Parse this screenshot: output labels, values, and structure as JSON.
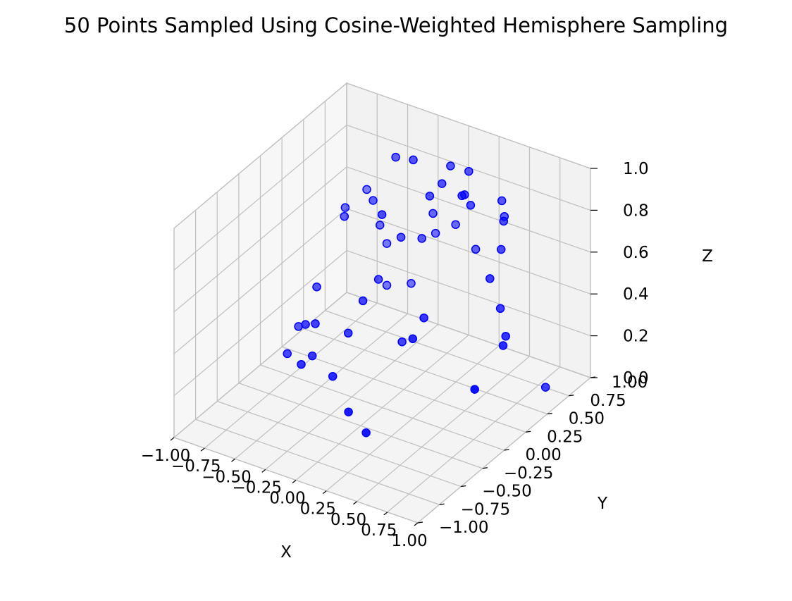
{
  "chart_data": {
    "type": "scatter",
    "title": "50 Points Sampled Using Cosine-Weighted Hemisphere Sampling",
    "xlabel": "X",
    "ylabel": "Y",
    "zlabel": "Z",
    "xlim": [
      -1.0,
      1.0
    ],
    "ylim": [
      -1.0,
      1.0
    ],
    "zlim": [
      0.0,
      1.0
    ],
    "xticks": [
      "−1.00",
      "−0.75",
      "−0.50",
      "−0.25",
      "0.00",
      "0.25",
      "0.50",
      "0.75",
      "1.00"
    ],
    "yticks": [
      "−1.00",
      "−0.75",
      "−0.50",
      "−0.25",
      "0.00",
      "0.25",
      "0.50",
      "0.75",
      "1.00"
    ],
    "zticks": [
      "0.0",
      "0.2",
      "0.4",
      "0.6",
      "0.8",
      "1.0"
    ],
    "grid": true,
    "projection": "3d",
    "marker_color": "#0000ff",
    "points": [
      {
        "x": -0.05,
        "y": -0.32,
        "z": 0.08
      },
      {
        "x": 0.08,
        "y": -0.3,
        "z": 0.0
      },
      {
        "x": -0.7,
        "y": 0.1,
        "z": 0.22
      },
      {
        "x": -0.58,
        "y": -0.12,
        "z": 0.13
      },
      {
        "x": -0.3,
        "y": -0.15,
        "z": 0.14
      },
      {
        "x": -0.56,
        "y": -0.02,
        "z": 0.14
      },
      {
        "x": -0.35,
        "y": 0.1,
        "z": 0.25
      },
      {
        "x": -0.3,
        "y": 0.2,
        "z": 0.38
      },
      {
        "x": -0.75,
        "y": 0.3,
        "z": 0.32
      },
      {
        "x": -0.62,
        "y": 0.1,
        "z": 0.24
      },
      {
        "x": -0.3,
        "y": 0.38,
        "z": 0.42
      },
      {
        "x": -0.05,
        "y": 0.3,
        "z": 0.2
      },
      {
        "x": 0.2,
        "y": 0.2,
        "z": 0.4
      },
      {
        "x": 0.25,
        "y": 0.0,
        "z": 0.38
      },
      {
        "x": 0.9,
        "y": -0.2,
        "z": 0.34
      },
      {
        "x": 0.6,
        "y": 0.4,
        "z": 0.6
      },
      {
        "x": 0.3,
        "y": 0.6,
        "z": 0.82
      },
      {
        "x": -0.55,
        "y": 0.75,
        "z": 0.5
      },
      {
        "x": -0.8,
        "y": 0.7,
        "z": 0.55
      },
      {
        "x": -0.7,
        "y": 0.55,
        "z": 0.58
      },
      {
        "x": -0.5,
        "y": 0.6,
        "z": 0.68
      },
      {
        "x": -0.15,
        "y": 0.8,
        "z": 0.62
      },
      {
        "x": -0.1,
        "y": 0.6,
        "z": 0.58
      },
      {
        "x": -0.2,
        "y": 0.5,
        "z": 0.6
      },
      {
        "x": -0.25,
        "y": 0.35,
        "z": 0.75
      },
      {
        "x": 0.0,
        "y": 0.55,
        "z": 0.82
      },
      {
        "x": 0.1,
        "y": 0.55,
        "z": 0.9
      },
      {
        "x": 0.25,
        "y": 0.6,
        "z": 0.86
      },
      {
        "x": 0.3,
        "y": 0.5,
        "z": 0.9
      },
      {
        "x": 0.55,
        "y": 0.6,
        "z": 0.66
      },
      {
        "x": 0.65,
        "y": 0.45,
        "z": 0.45
      },
      {
        "x": 0.8,
        "y": 0.3,
        "z": 0.4
      },
      {
        "x": 0.85,
        "y": 0.2,
        "z": 0.4
      },
      {
        "x": 0.5,
        "y": 0.7,
        "z": 0.75
      },
      {
        "x": 0.45,
        "y": 0.75,
        "z": 0.82
      },
      {
        "x": -0.35,
        "y": 0.65,
        "z": 0.9
      },
      {
        "x": -0.1,
        "y": 0.5,
        "z": 0.99
      },
      {
        "x": 0.1,
        "y": 0.65,
        "z": 0.95
      },
      {
        "x": 0.2,
        "y": 0.72,
        "z": 0.92
      },
      {
        "x": 0.4,
        "y": 0.85,
        "z": 0.7
      },
      {
        "x": 0.0,
        "y": 0.85,
        "z": 0.58
      },
      {
        "x": -0.2,
        "y": 0.9,
        "z": 0.48
      },
      {
        "x": 0.2,
        "y": 0.8,
        "z": 0.52
      },
      {
        "x": 0.95,
        "y": 0.55,
        "z": 0.1
      },
      {
        "x": -0.6,
        "y": 0.9,
        "z": 0.15
      },
      {
        "x": -0.9,
        "y": 0.3,
        "z": 0.1
      },
      {
        "x": -0.85,
        "y": 0.1,
        "z": 0.05
      },
      {
        "x": -0.4,
        "y": 0.9,
        "z": 0.2
      },
      {
        "x": -0.6,
        "y": 0.9,
        "z": 0.35
      },
      {
        "x": -0.8,
        "y": 0.95,
        "z": 0.55
      }
    ]
  }
}
